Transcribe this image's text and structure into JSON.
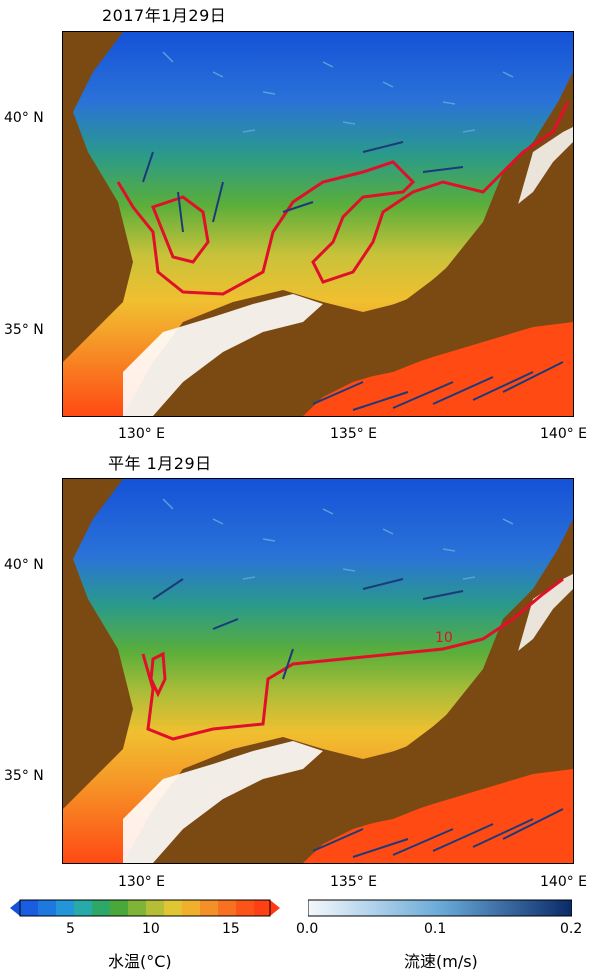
{
  "panels": [
    {
      "title": "2017年1月29日",
      "contour_label": "",
      "lat_ticks": [
        "40° N",
        "35° N"
      ],
      "lon_ticks": [
        "130° E",
        "135° E",
        "140° E"
      ]
    },
    {
      "title": "平年 1月29日",
      "contour_label": "10",
      "lat_ticks": [
        "40° N",
        "35° N"
      ],
      "lon_ticks": [
        "130° E",
        "135° E",
        "140° E"
      ]
    }
  ],
  "colorbars": {
    "temperature": {
      "title": "水温(°C)",
      "ticks": [
        "5",
        "10",
        "15"
      ]
    },
    "speed": {
      "title": "流速(m/s)",
      "ticks": [
        "0.0",
        "0.1",
        "0.2"
      ]
    }
  },
  "colors": {
    "land": "#7a4a12",
    "contour": "#e0102a",
    "cold": "#1a5de0",
    "mid": "#3aa83a",
    "warm": "#f0c030",
    "hot": "#ff4a14"
  }
}
